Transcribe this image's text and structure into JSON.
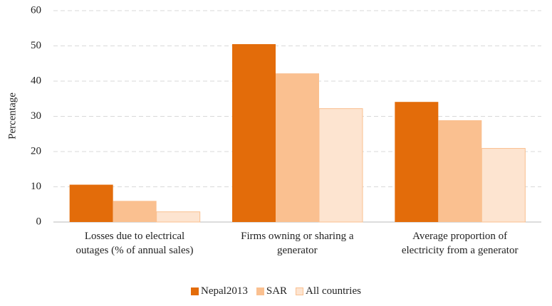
{
  "chart_data": {
    "type": "bar",
    "categories": [
      "Losses due to electrical\noutages (% of annual sales)",
      "Firms owning or sharing a\ngenerator",
      "Average proportion of\nelectricity from a generator"
    ],
    "series": [
      {
        "name": "Nepal2013",
        "color": "#e36c0a",
        "values": [
          10.6,
          50.5,
          34.1
        ]
      },
      {
        "name": "SAR",
        "color": "#fac090",
        "values": [
          6.0,
          42.2,
          28.9
        ]
      },
      {
        "name": "All countries",
        "color": "#fde4d0",
        "values": [
          2.9,
          32.2,
          20.9
        ]
      }
    ],
    "y_label": "Percentage",
    "ylim": [
      0,
      60
    ],
    "yticks": [
      0,
      10,
      20,
      30,
      40,
      50,
      60
    ],
    "grid": true,
    "legend": "bottom"
  }
}
